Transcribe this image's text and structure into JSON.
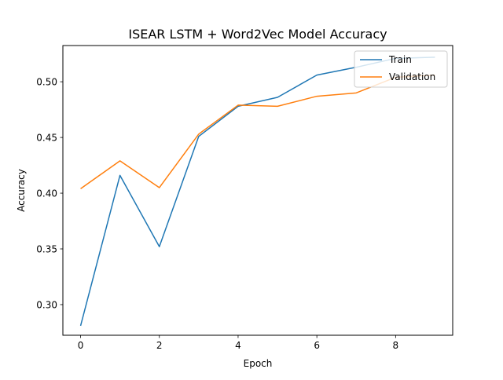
{
  "chart_data": {
    "type": "line",
    "title": "ISEAR LSTM + Word2Vec Model Accuracy",
    "xlabel": "Epoch",
    "ylabel": "Accuracy",
    "x": [
      0,
      1,
      2,
      3,
      4,
      5,
      6,
      7,
      8,
      9
    ],
    "series": [
      {
        "name": "Train",
        "color": "#1f77b4",
        "values": [
          0.281,
          0.416,
          0.352,
          0.451,
          0.478,
          0.486,
          0.506,
          0.513,
          0.521,
          0.522
        ]
      },
      {
        "name": "Validation",
        "color": "#ff7f0e",
        "values": [
          0.404,
          0.429,
          0.405,
          0.453,
          0.479,
          0.478,
          0.487,
          0.49,
          0.504,
          0.506
        ]
      }
    ],
    "xlim": [
      -0.45,
      9.45
    ],
    "ylim": [
      0.2725,
      0.5325
    ],
    "xticks": [
      0,
      2,
      4,
      6,
      8
    ],
    "yticks": [
      0.3,
      0.35,
      0.4,
      0.45,
      0.5
    ],
    "xtick_labels": [
      "0",
      "2",
      "4",
      "6",
      "8"
    ],
    "ytick_labels": [
      "0.30",
      "0.35",
      "0.40",
      "0.45",
      "0.50"
    ],
    "grid": false,
    "legend_position": "top-right"
  }
}
